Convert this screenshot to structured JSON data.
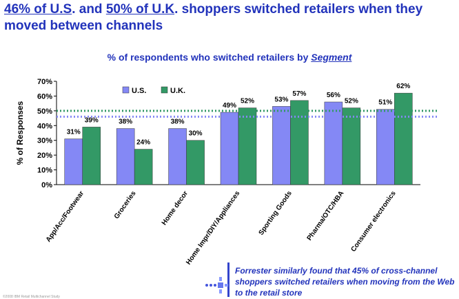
{
  "headline": {
    "highlight_us": "46% of U.S",
    "dot": ".",
    "and": " and ",
    "highlight_uk": "50% of U.K",
    "rest": ". shoppers switched retailers when they moved between channels"
  },
  "subtitle": {
    "prefix": "% of respondents who switched retailers by ",
    "segment": "Segment"
  },
  "chart_data": {
    "type": "bar",
    "categories": [
      "App/Acc/Footwear",
      "Groceries",
      "Home decor",
      "Home Impr/DIY/Appliances",
      "Sporting Goods",
      "Pharma/OTC/HBA",
      "Consumer electronics"
    ],
    "series": [
      {
        "name": "U.S.",
        "values": [
          31,
          38,
          38,
          49,
          53,
          56,
          51
        ],
        "labels": [
          "31%",
          "38%",
          "38%",
          "49%",
          "53%",
          "56%",
          "51%"
        ],
        "color": "#8488f5"
      },
      {
        "name": "U.K.",
        "values": [
          39,
          24,
          30,
          52,
          57,
          52,
          62
        ],
        "labels": [
          "39%",
          "24%",
          "30%",
          "52%",
          "57%",
          "52%",
          "62%"
        ],
        "color": "#339966"
      }
    ],
    "reference_lines": [
      {
        "series": "U.K.",
        "value": 50,
        "color": "#339966"
      },
      {
        "series": "U.S.",
        "value": 46,
        "color": "#8488f5"
      }
    ],
    "ylabel": "% of Responses",
    "ylim": [
      0,
      70
    ],
    "yticks": [
      0,
      10,
      20,
      30,
      40,
      50,
      60,
      70
    ],
    "ytick_labels": [
      "0%",
      "10%",
      "20%",
      "30%",
      "40%",
      "50%",
      "60%",
      "70%"
    ],
    "legend_position": "top-left",
    "grid": false
  },
  "callout": {
    "text": "Forrester similarly found that 45% of cross-channel shoppers switched retailers when moving from the Web to the retail store",
    "icon": "blue-dots-cross-icon",
    "accent_color": "#3344cc"
  },
  "footer": {
    "text": "©2008 IBM Retail Multichannel Study"
  }
}
